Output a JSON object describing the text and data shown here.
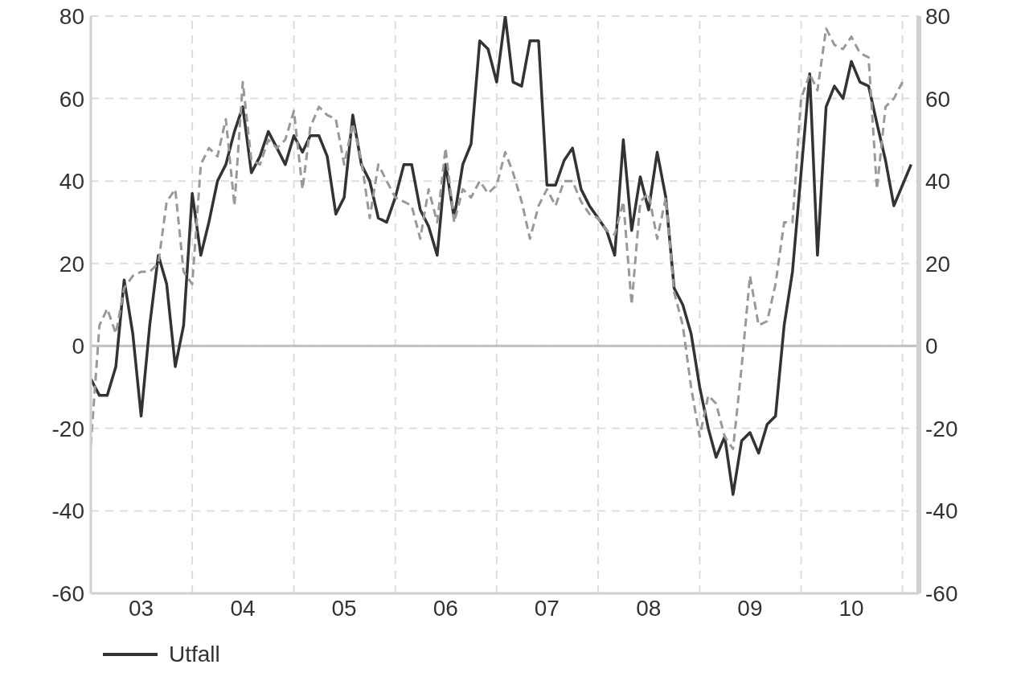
{
  "chart_data": {
    "type": "line",
    "x": [
      "2003-01",
      "2003-02",
      "2003-03",
      "2003-04",
      "2003-05",
      "2003-06",
      "2003-07",
      "2003-08",
      "2003-09",
      "2003-10",
      "2003-11",
      "2003-12",
      "2004-01",
      "2004-02",
      "2004-03",
      "2004-04",
      "2004-05",
      "2004-06",
      "2004-07",
      "2004-08",
      "2004-09",
      "2004-10",
      "2004-11",
      "2004-12",
      "2005-01",
      "2005-02",
      "2005-03",
      "2005-04",
      "2005-05",
      "2005-06",
      "2005-07",
      "2005-08",
      "2005-09",
      "2005-10",
      "2005-11",
      "2005-12",
      "2006-01",
      "2006-02",
      "2006-03",
      "2006-04",
      "2006-05",
      "2006-06",
      "2006-07",
      "2006-08",
      "2006-09",
      "2006-10",
      "2006-11",
      "2006-12",
      "2007-01",
      "2007-02",
      "2007-03",
      "2007-04",
      "2007-05",
      "2007-06",
      "2007-07",
      "2007-08",
      "2007-09",
      "2007-10",
      "2007-11",
      "2007-12",
      "2008-01",
      "2008-02",
      "2008-03",
      "2008-04",
      "2008-05",
      "2008-06",
      "2008-07",
      "2008-08",
      "2008-09",
      "2008-10",
      "2008-11",
      "2008-12",
      "2009-01",
      "2009-02",
      "2009-03",
      "2009-04",
      "2009-05",
      "2009-06",
      "2009-07",
      "2009-08",
      "2009-09",
      "2009-10",
      "2009-11",
      "2009-12",
      "2010-01",
      "2010-02",
      "2010-03",
      "2010-04",
      "2010-05",
      "2010-06",
      "2010-07",
      "2010-08",
      "2010-09",
      "2010-10",
      "2010-11",
      "2010-12",
      "2011-01",
      "2011-02"
    ],
    "series": [
      {
        "name": "Utfall",
        "color": "#333333",
        "line_style": "solid",
        "values": [
          -8,
          -12,
          -12,
          -5,
          16,
          3,
          -17,
          5,
          22,
          15,
          -5,
          5,
          37,
          22,
          30,
          40,
          44,
          52,
          58,
          42,
          46,
          52,
          48,
          44,
          51,
          47,
          51,
          51,
          46,
          32,
          36,
          56,
          44,
          40,
          31,
          30,
          36,
          44,
          44,
          33,
          29,
          22,
          44,
          31,
          44,
          49,
          74,
          72,
          64,
          80,
          64,
          63,
          74,
          74,
          39,
          39,
          45,
          48,
          38,
          34,
          31,
          28,
          22,
          50,
          28,
          41,
          33,
          47,
          36,
          14,
          10,
          3,
          -10,
          -20,
          -27,
          -22,
          -36,
          -23,
          -21,
          -26,
          -19,
          -17,
          5,
          18,
          42,
          66,
          22,
          58,
          63,
          60,
          69,
          64,
          63,
          54,
          45,
          34,
          39,
          44
        ]
      },
      {
        "color": "#999999",
        "line_style": "dashed",
        "values": [
          -24,
          5,
          9,
          3,
          14,
          17,
          18,
          18,
          20,
          35,
          38,
          18,
          15,
          44,
          48,
          46,
          55,
          34,
          64,
          45,
          44,
          50,
          48,
          50,
          57,
          38,
          53,
          58,
          56,
          55,
          44,
          54,
          45,
          31,
          44,
          40,
          36,
          35,
          34,
          26,
          38,
          30,
          48,
          30,
          38,
          36,
          40,
          37,
          39,
          47,
          42,
          35,
          26,
          34,
          38,
          34,
          40,
          40,
          35,
          32,
          31,
          28,
          27,
          35,
          10,
          35,
          37,
          26,
          36,
          13,
          5,
          -10,
          -22,
          -12,
          -14,
          -22,
          -25,
          -5,
          17,
          5,
          6,
          15,
          30,
          30,
          60,
          66,
          62,
          77,
          73,
          72,
          75,
          71,
          70,
          38,
          58,
          60,
          64,
          null
        ]
      }
    ],
    "xlim": [
      "2003-01",
      "2011-03"
    ],
    "xticks": [
      {
        "value": "2003-07",
        "label": "03"
      },
      {
        "value": "2004-01",
        "label": null
      },
      {
        "value": "2004-07",
        "label": "04"
      },
      {
        "value": "2005-01",
        "label": null
      },
      {
        "value": "2005-07",
        "label": "05"
      },
      {
        "value": "2006-01",
        "label": null
      },
      {
        "value": "2006-07",
        "label": "06"
      },
      {
        "value": "2007-01",
        "label": null
      },
      {
        "value": "2007-07",
        "label": "07"
      },
      {
        "value": "2008-01",
        "label": null
      },
      {
        "value": "2008-07",
        "label": "08"
      },
      {
        "value": "2009-01",
        "label": null
      },
      {
        "value": "2009-07",
        "label": "09"
      },
      {
        "value": "2010-01",
        "label": null
      },
      {
        "value": "2010-07",
        "label": "10"
      },
      {
        "value": "2011-01",
        "label": null
      }
    ],
    "ylim": [
      -60,
      80
    ],
    "yticks": [
      -60,
      -40,
      -20,
      0,
      20,
      40,
      60,
      80
    ],
    "y2lim": [
      -60,
      80
    ],
    "y2ticks": [
      -60,
      -40,
      -20,
      0,
      20,
      40,
      60,
      80
    ],
    "ref_lines": [
      {
        "axis": "y",
        "value": 0,
        "color": "#c0c0c0",
        "line_style": "solid"
      }
    ],
    "grid": true,
    "legend": "bottom left",
    "marker": "none"
  }
}
